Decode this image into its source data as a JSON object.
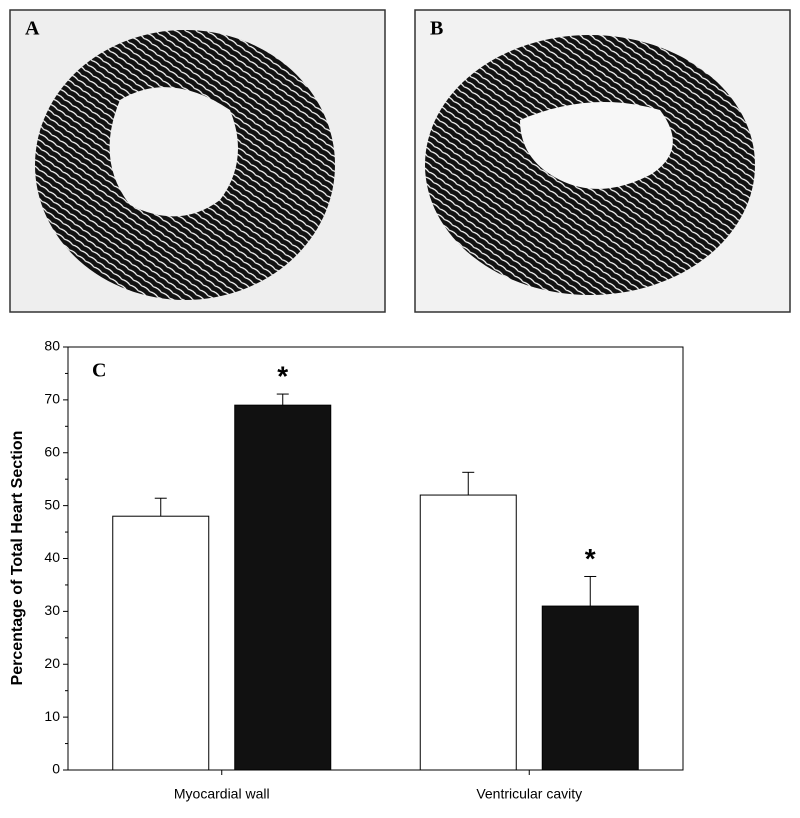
{
  "panels": {
    "a": "A",
    "b": "B"
  },
  "chart_data": {
    "type": "bar",
    "panel_label": "C",
    "y_label": "Percentage of Total Heart Section",
    "categories": [
      "Myocardial wall",
      "Ventricular cavity"
    ],
    "series": [
      {
        "color": "#ffffff",
        "values": [
          48,
          52
        ],
        "errors": [
          3.4,
          4.3
        ]
      },
      {
        "color": "#111111",
        "values": [
          69,
          31
        ],
        "errors": [
          2.1,
          5.6
        ],
        "markers": [
          "*",
          "*"
        ]
      }
    ],
    "ylim": [
      0,
      80
    ],
    "yticks": [
      0,
      10,
      20,
      30,
      40,
      50,
      60,
      70,
      80
    ],
    "minor_yticks": [
      5,
      15,
      25,
      35,
      45,
      55,
      65,
      75
    ]
  }
}
